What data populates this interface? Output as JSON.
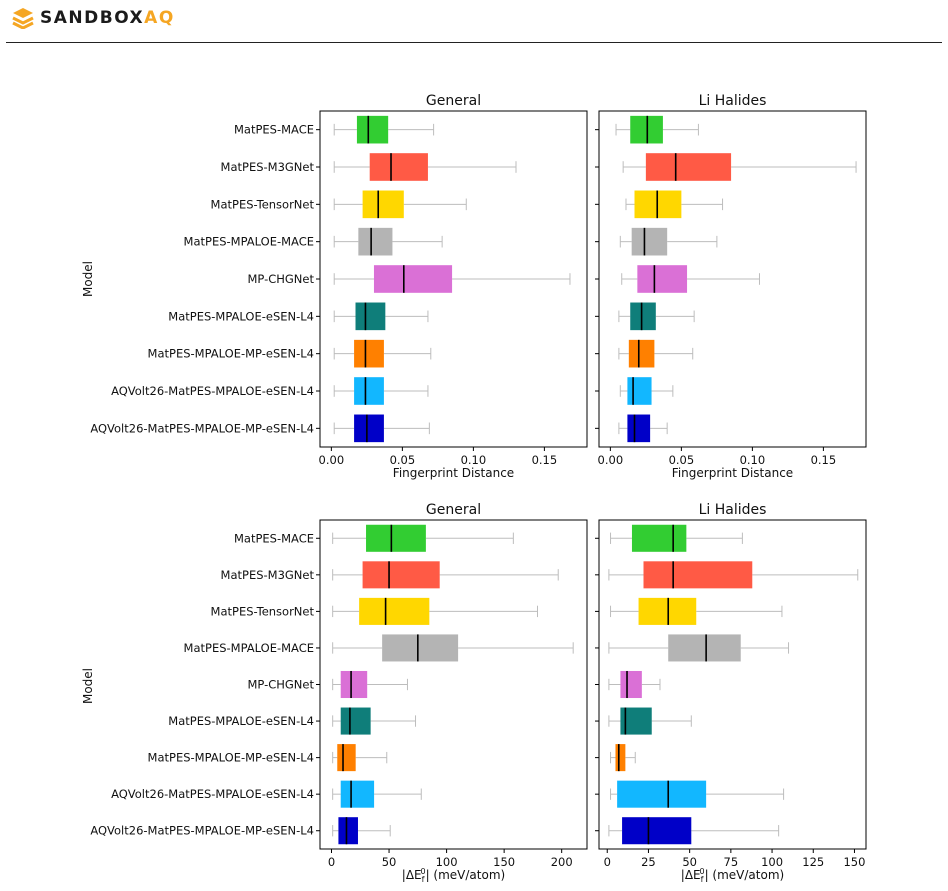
{
  "brand": {
    "name": "SANDBOX",
    "suffix": "AQ",
    "accent": "#f5a623"
  },
  "chart_data": [
    {
      "type": "boxplot",
      "panel": "top",
      "ylabel": "Model",
      "categories": [
        "MatPES-MACE",
        "MatPES-M3GNet",
        "MatPES-TensorNet",
        "MatPES-MPALOE-MACE",
        "MP-CHGNet",
        "MatPES-MPALOE-eSEN-L4",
        "MatPES-MPALOE-MP-eSEN-L4",
        "AQVolt26-MatPES-MPALOE-eSEN-L4",
        "AQVolt26-MatPES-MPALOE-MP-eSEN-L4"
      ],
      "colors": [
        "#32cd32",
        "#ff5a45",
        "#ffd700",
        "#b4b4b4",
        "#da70d6",
        "#0f7e7a",
        "#ff8000",
        "#12b7ff",
        "#0000c8"
      ],
      "subplots": [
        {
          "title": "General",
          "xlabel": "Fingerprint Distance",
          "xlim": [
            -0.008,
            0.18
          ],
          "xticks": [
            "0.00",
            "0.05",
            "0.10",
            "0.15"
          ],
          "tick_values": [
            0,
            0.05,
            0.1,
            0.15
          ],
          "boxes": [
            {
              "wmin": 0.002,
              "q1": 0.018,
              "median": 0.026,
              "q3": 0.04,
              "wmax": 0.072
            },
            {
              "wmin": 0.002,
              "q1": 0.027,
              "median": 0.042,
              "q3": 0.068,
              "wmax": 0.13
            },
            {
              "wmin": 0.002,
              "q1": 0.022,
              "median": 0.033,
              "q3": 0.051,
              "wmax": 0.095
            },
            {
              "wmin": 0.002,
              "q1": 0.019,
              "median": 0.028,
              "q3": 0.043,
              "wmax": 0.078
            },
            {
              "wmin": 0.002,
              "q1": 0.03,
              "median": 0.051,
              "q3": 0.085,
              "wmax": 0.168
            },
            {
              "wmin": 0.002,
              "q1": 0.017,
              "median": 0.024,
              "q3": 0.038,
              "wmax": 0.068
            },
            {
              "wmin": 0.002,
              "q1": 0.016,
              "median": 0.024,
              "q3": 0.037,
              "wmax": 0.07
            },
            {
              "wmin": 0.002,
              "q1": 0.016,
              "median": 0.024,
              "q3": 0.037,
              "wmax": 0.068
            },
            {
              "wmin": 0.002,
              "q1": 0.016,
              "median": 0.025,
              "q3": 0.037,
              "wmax": 0.069
            }
          ]
        },
        {
          "title": "Li Halides",
          "xlabel": "Fingerprint Distance",
          "xlim": [
            -0.008,
            0.18
          ],
          "xticks": [
            "0.00",
            "0.05",
            "0.10",
            "0.15"
          ],
          "tick_values": [
            0,
            0.05,
            0.1,
            0.15
          ],
          "boxes": [
            {
              "wmin": 0.004,
              "q1": 0.014,
              "median": 0.026,
              "q3": 0.037,
              "wmax": 0.062
            },
            {
              "wmin": 0.009,
              "q1": 0.025,
              "median": 0.046,
              "q3": 0.085,
              "wmax": 0.173
            },
            {
              "wmin": 0.011,
              "q1": 0.017,
              "median": 0.033,
              "q3": 0.05,
              "wmax": 0.079
            },
            {
              "wmin": 0.007,
              "q1": 0.015,
              "median": 0.024,
              "q3": 0.04,
              "wmax": 0.075
            },
            {
              "wmin": 0.008,
              "q1": 0.019,
              "median": 0.031,
              "q3": 0.054,
              "wmax": 0.105
            },
            {
              "wmin": 0.006,
              "q1": 0.014,
              "median": 0.022,
              "q3": 0.032,
              "wmax": 0.059
            },
            {
              "wmin": 0.006,
              "q1": 0.013,
              "median": 0.02,
              "q3": 0.031,
              "wmax": 0.058
            },
            {
              "wmin": 0.007,
              "q1": 0.012,
              "median": 0.016,
              "q3": 0.029,
              "wmax": 0.044
            },
            {
              "wmin": 0.006,
              "q1": 0.012,
              "median": 0.017,
              "q3": 0.028,
              "wmax": 0.04
            }
          ]
        }
      ]
    },
    {
      "type": "boxplot",
      "panel": "bottom",
      "ylabel": "Model",
      "categories": [
        "MatPES-MACE",
        "MatPES-M3GNet",
        "MatPES-TensorNet",
        "MatPES-MPALOE-MACE",
        "MP-CHGNet",
        "MatPES-MPALOE-eSEN-L4",
        "MatPES-MPALOE-MP-eSEN-L4",
        "AQVolt26-MatPES-MPALOE-eSEN-L4",
        "AQVolt26-MatPES-MPALOE-MP-eSEN-L4"
      ],
      "colors": [
        "#32cd32",
        "#ff5a45",
        "#ffd700",
        "#b4b4b4",
        "#da70d6",
        "#0f7e7a",
        "#ff8000",
        "#12b7ff",
        "#0000c8"
      ],
      "subplots": [
        {
          "title": "General",
          "xlabel": "|ΔE_f^0| (meV/atom)",
          "xlim": [
            -10,
            222
          ],
          "xticks": [
            "0",
            "50",
            "100",
            "150",
            "200"
          ],
          "tick_values": [
            0,
            50,
            100,
            150,
            200
          ],
          "boxes": [
            {
              "wmin": 1,
              "q1": 30,
              "median": 52,
              "q3": 82,
              "wmax": 158
            },
            {
              "wmin": 1,
              "q1": 27,
              "median": 50,
              "q3": 94,
              "wmax": 197
            },
            {
              "wmin": 1,
              "q1": 24,
              "median": 47,
              "q3": 85,
              "wmax": 179
            },
            {
              "wmin": 1,
              "q1": 44,
              "median": 75,
              "q3": 110,
              "wmax": 210
            },
            {
              "wmin": 1,
              "q1": 8,
              "median": 17,
              "q3": 31,
              "wmax": 66
            },
            {
              "wmin": 1,
              "q1": 8,
              "median": 16,
              "q3": 34,
              "wmax": 73
            },
            {
              "wmin": 1,
              "q1": 5,
              "median": 10,
              "q3": 21,
              "wmax": 48
            },
            {
              "wmin": 1,
              "q1": 8,
              "median": 17,
              "q3": 37,
              "wmax": 78
            },
            {
              "wmin": 1,
              "q1": 6,
              "median": 13,
              "q3": 23,
              "wmax": 51
            }
          ]
        },
        {
          "title": "Li Halides",
          "xlabel": "|ΔE_f^0| (meV/atom)",
          "xlim": [
            -5,
            157
          ],
          "xticks": [
            "0",
            "25",
            "50",
            "75",
            "100",
            "125",
            "150"
          ],
          "tick_values": [
            0,
            25,
            50,
            75,
            100,
            125,
            150
          ],
          "boxes": [
            {
              "wmin": 2,
              "q1": 15,
              "median": 40,
              "q3": 48,
              "wmax": 82
            },
            {
              "wmin": 1,
              "q1": 22,
              "median": 40,
              "q3": 88,
              "wmax": 152
            },
            {
              "wmin": 2,
              "q1": 19,
              "median": 37,
              "q3": 54,
              "wmax": 106
            },
            {
              "wmin": 1,
              "q1": 37,
              "median": 60,
              "q3": 81,
              "wmax": 110
            },
            {
              "wmin": 1,
              "q1": 8,
              "median": 12,
              "q3": 21,
              "wmax": 32
            },
            {
              "wmin": 1,
              "q1": 8,
              "median": 11,
              "q3": 27,
              "wmax": 51
            },
            {
              "wmin": 2,
              "q1": 5,
              "median": 7,
              "q3": 11,
              "wmax": 17
            },
            {
              "wmin": 2,
              "q1": 6,
              "median": 37,
              "q3": 60,
              "wmax": 107
            },
            {
              "wmin": 1,
              "q1": 9,
              "median": 25,
              "q3": 51,
              "wmax": 104
            }
          ]
        }
      ]
    }
  ]
}
